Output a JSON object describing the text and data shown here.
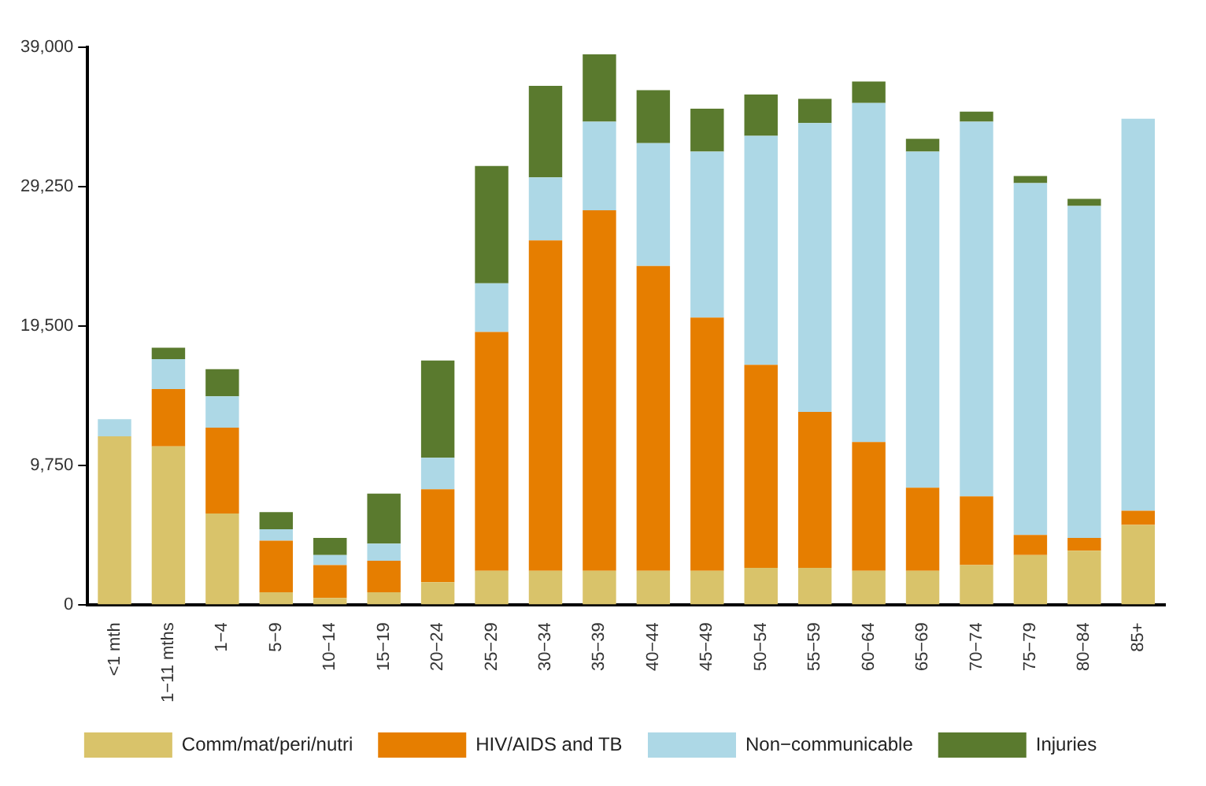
{
  "chart_data": {
    "type": "bar",
    "stacked": true,
    "categories": [
      "<1 mth",
      "1−11 mths",
      "1−4",
      "5−9",
      "10−14",
      "15−19",
      "20−24",
      "25−29",
      "30−34",
      "35−39",
      "40−44",
      "45−49",
      "50−54",
      "55−59",
      "60−64",
      "65−69",
      "70−74",
      "75−79",
      "80−84",
      "85+"
    ],
    "series": [
      {
        "name": "Comm/mat/peri/nutri",
        "color": "#d9c36a",
        "values": [
          11800,
          11100,
          6400,
          900,
          500,
          900,
          1600,
          2400,
          2400,
          2400,
          2400,
          2400,
          2600,
          2600,
          2400,
          2400,
          2800,
          3500,
          3800,
          5600
        ]
      },
      {
        "name": "HIV/AIDS and TB",
        "color": "#e67e00",
        "values": [
          0,
          4000,
          6000,
          3600,
          2300,
          2200,
          6500,
          16700,
          23100,
          25200,
          21300,
          17700,
          14200,
          10900,
          9000,
          5800,
          4800,
          1400,
          900,
          1000
        ]
      },
      {
        "name": "Non−communicable",
        "color": "#add8e6",
        "values": [
          1200,
          2100,
          2200,
          800,
          700,
          1200,
          2200,
          3400,
          4400,
          6200,
          8600,
          11600,
          16000,
          20200,
          23700,
          23500,
          26200,
          24600,
          23200,
          27400
        ]
      },
      {
        "name": "Injuries",
        "color": "#5a7a2e",
        "values": [
          0,
          800,
          1900,
          1200,
          1200,
          3500,
          6800,
          8200,
          6400,
          4700,
          3700,
          3000,
          2900,
          1700,
          1500,
          900,
          700,
          500,
          500,
          0
        ]
      }
    ],
    "ylim": [
      0,
      39000
    ],
    "yticks": [
      {
        "value": 0,
        "label": "0"
      },
      {
        "value": 9750,
        "label": "9,750"
      },
      {
        "value": 19500,
        "label": "19,500"
      },
      {
        "value": 29250,
        "label": "29,250"
      },
      {
        "value": 39000,
        "label": "39,000"
      }
    ],
    "grid": false,
    "legend": "bottom"
  }
}
